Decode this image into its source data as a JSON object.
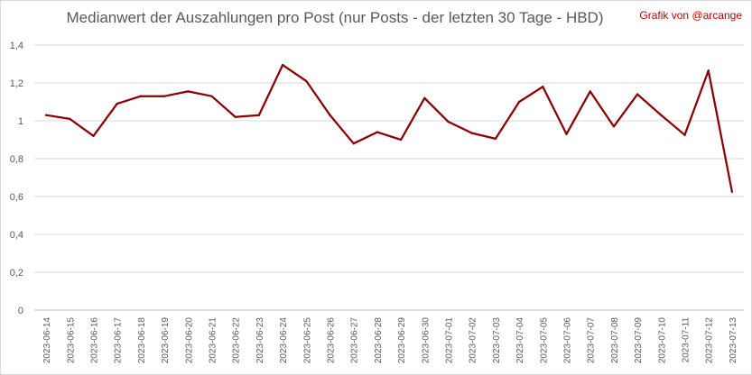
{
  "chart_data": {
    "type": "line",
    "title": "Medianwert der Auszahlungen pro Post (nur Posts - der letzten 30 Tage - HBD)",
    "credit": "Grafik von @arcange",
    "xlabel": "",
    "ylabel": "",
    "ylim": [
      0,
      1.4
    ],
    "y_ticks": [
      "0",
      "0,2",
      "0,4",
      "0,6",
      "0,8",
      "1",
      "1,2",
      "1,4"
    ],
    "y_tick_values": [
      0,
      0.2,
      0.4,
      0.6,
      0.8,
      1.0,
      1.2,
      1.4
    ],
    "grid": true,
    "legend": "none",
    "line_color": "#8b0000",
    "categories": [
      "2023-06-14",
      "2023-06-15",
      "2023-06-16",
      "2023-06-17",
      "2023-06-18",
      "2023-06-19",
      "2023-06-20",
      "2023-06-21",
      "2023-06-22",
      "2023-06-23",
      "2023-06-24",
      "2023-06-25",
      "2023-06-26",
      "2023-06-27",
      "2023-06-28",
      "2023-06-29",
      "2023-06-30",
      "2023-07-01",
      "2023-07-02",
      "2023-07-03",
      "2023-07-04",
      "2023-07-05",
      "2023-07-06",
      "2023-07-07",
      "2023-07-08",
      "2023-07-09",
      "2023-07-10",
      "2023-07-11",
      "2023-07-12",
      "2023-07-13"
    ],
    "series": [
      {
        "values": [
          1.03,
          1.01,
          0.92,
          1.09,
          1.13,
          1.13,
          1.155,
          1.13,
          1.02,
          1.03,
          1.295,
          1.21,
          1.03,
          0.88,
          0.94,
          0.9,
          1.12,
          0.995,
          0.935,
          0.905,
          1.1,
          1.18,
          0.93,
          1.155,
          0.97,
          1.14,
          1.03,
          0.925,
          1.265,
          0.625
        ]
      }
    ]
  }
}
